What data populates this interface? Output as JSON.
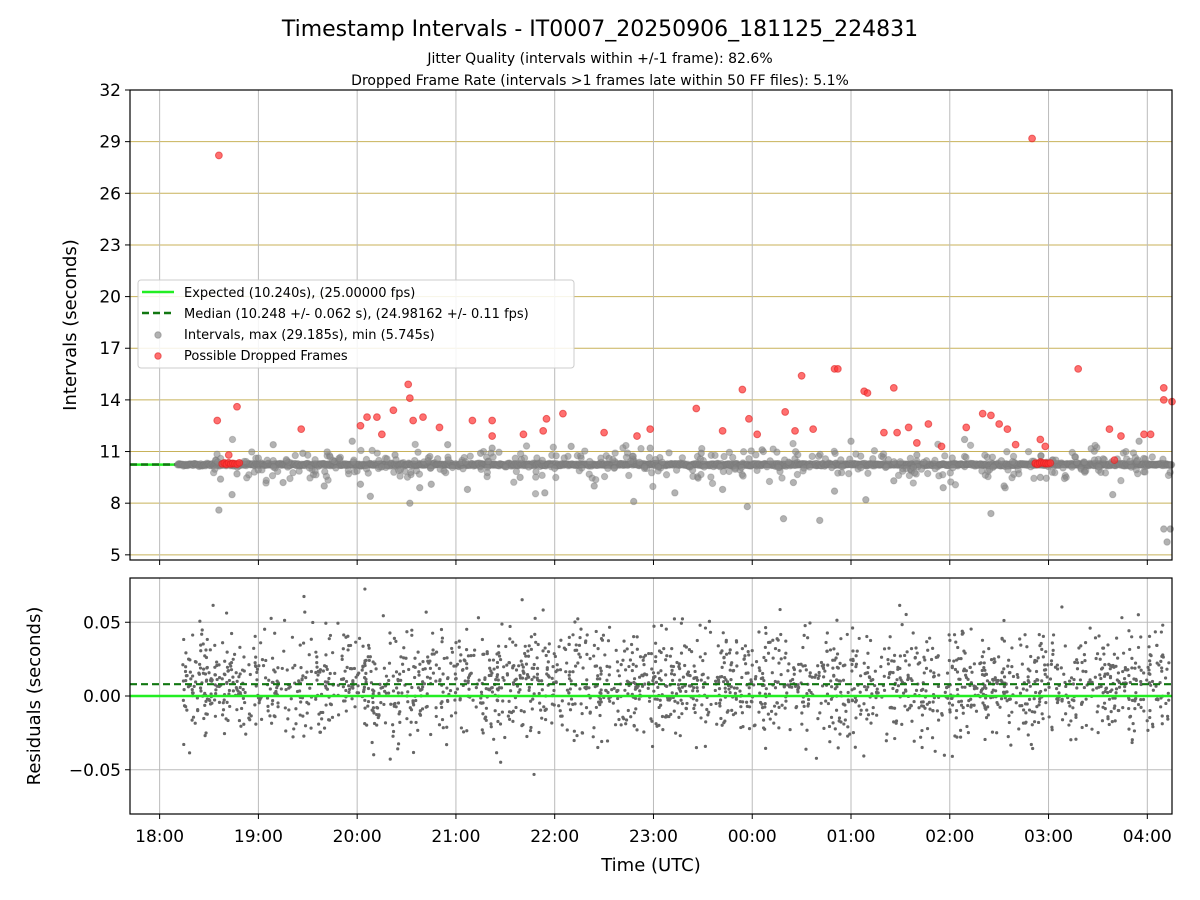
{
  "title": "Timestamp Intervals - IT0007_20250906_181125_224831",
  "subtitle_lines": [
    "Jitter Quality (intervals within +/-1 frame): 82.6%",
    "Dropped Frame Rate (intervals >1 frames late within 50 FF files): 5.1%"
  ],
  "colors": {
    "expected": "#22ee22",
    "median": "#117711",
    "intervals": "#888888",
    "dropped": "#ff3333",
    "gold_grid": "#c8b25a",
    "grey_grid": "#bbbbbb",
    "residual_points": "#666666"
  },
  "chart_data": [
    {
      "type": "scatter",
      "panel": "intervals",
      "title": "Timestamp Intervals - IT0007_20250906_181125_224831",
      "xlabel": "",
      "ylabel": "Intervals (seconds)",
      "x_range": [
        "17:42",
        "04:15"
      ],
      "x_tick_labels": [
        "18:00",
        "19:00",
        "20:00",
        "21:00",
        "22:00",
        "23:00",
        "00:00",
        "01:00",
        "02:00",
        "03:00",
        "04:00"
      ],
      "ylim": [
        4.7,
        32
      ],
      "y_ticks": [
        5,
        8,
        11,
        14,
        17,
        20,
        23,
        26,
        29,
        32
      ],
      "grid": true,
      "legend_position": "center-left",
      "legend": [
        "Expected (10.240s), (25.00000 fps)",
        "Median (10.248 +/- 0.062 s), (24.98162 +/- 0.11 fps)",
        "Intervals, max (29.185s), min (5.745s)",
        "Possible Dropped Frames"
      ],
      "expected_interval": 10.24,
      "median_interval": 10.248,
      "interval_band": {
        "x_start": "18:11",
        "x_end": "04:15",
        "y": 10.24
      },
      "interval_outliers": [
        {
          "x": "18:36",
          "y": 7.6
        },
        {
          "x": "18:37",
          "y": 9.4
        },
        {
          "x": "18:44",
          "y": 8.5
        },
        {
          "x": "18:47",
          "y": 9.7
        },
        {
          "x": "19:09",
          "y": 11.4
        },
        {
          "x": "19:15",
          "y": 9.2
        },
        {
          "x": "19:27",
          "y": 10.9
        },
        {
          "x": "19:40",
          "y": 9.0
        },
        {
          "x": "19:49",
          "y": 10.6
        },
        {
          "x": "19:57",
          "y": 11.6
        },
        {
          "x": "20:02",
          "y": 9.1
        },
        {
          "x": "20:08",
          "y": 8.4
        },
        {
          "x": "20:23",
          "y": 10.8
        },
        {
          "x": "20:32",
          "y": 8.0
        },
        {
          "x": "20:38",
          "y": 8.9
        },
        {
          "x": "20:45",
          "y": 9.1
        },
        {
          "x": "20:55",
          "y": 11.4
        },
        {
          "x": "21:07",
          "y": 8.8
        },
        {
          "x": "21:15",
          "y": 10.9
        },
        {
          "x": "21:22",
          "y": 11.2
        },
        {
          "x": "21:39",
          "y": 9.5
        },
        {
          "x": "21:54",
          "y": 8.6
        },
        {
          "x": "22:10",
          "y": 11.3
        },
        {
          "x": "22:24",
          "y": 9.0
        },
        {
          "x": "22:33",
          "y": 10.6
        },
        {
          "x": "22:48",
          "y": 8.1
        },
        {
          "x": "22:58",
          "y": 11.2
        },
        {
          "x": "23:13",
          "y": 8.6
        },
        {
          "x": "23:29",
          "y": 10.9
        },
        {
          "x": "23:42",
          "y": 8.8
        },
        {
          "x": "23:57",
          "y": 7.8
        },
        {
          "x": "00:06",
          "y": 11.1
        },
        {
          "x": "00:19",
          "y": 7.1
        },
        {
          "x": "00:25",
          "y": 9.2
        },
        {
          "x": "00:41",
          "y": 7.0
        },
        {
          "x": "00:50",
          "y": 8.7
        },
        {
          "x": "01:00",
          "y": 11.6
        },
        {
          "x": "01:09",
          "y": 8.2
        },
        {
          "x": "01:26",
          "y": 9.3
        },
        {
          "x": "01:40",
          "y": 10.8
        },
        {
          "x": "01:56",
          "y": 8.9
        },
        {
          "x": "02:09",
          "y": 11.7
        },
        {
          "x": "02:25",
          "y": 7.4
        },
        {
          "x": "02:33",
          "y": 9.0
        },
        {
          "x": "02:55",
          "y": 9.5
        },
        {
          "x": "03:16",
          "y": 10.7
        },
        {
          "x": "03:39",
          "y": 8.5
        },
        {
          "x": "03:55",
          "y": 11.6
        },
        {
          "x": "04:10",
          "y": 6.5
        },
        {
          "x": "04:12",
          "y": 5.745
        },
        {
          "x": "04:14",
          "y": 6.5
        }
      ],
      "dropped_frames": [
        {
          "x": "18:36",
          "y": 28.2
        },
        {
          "x": "18:35",
          "y": 12.8
        },
        {
          "x": "18:47",
          "y": 13.6
        },
        {
          "x": "18:40",
          "y": 10.3
        },
        {
          "x": "18:42",
          "y": 10.8
        },
        {
          "x": "18:44",
          "y": 10.3
        },
        {
          "x": "19:26",
          "y": 12.3
        },
        {
          "x": "20:02",
          "y": 12.5
        },
        {
          "x": "20:06",
          "y": 13.0
        },
        {
          "x": "20:12",
          "y": 13.0
        },
        {
          "x": "20:15",
          "y": 12.0
        },
        {
          "x": "20:22",
          "y": 13.4
        },
        {
          "x": "20:31",
          "y": 14.9
        },
        {
          "x": "20:32",
          "y": 14.1
        },
        {
          "x": "20:34",
          "y": 12.8
        },
        {
          "x": "20:40",
          "y": 13.0
        },
        {
          "x": "20:50",
          "y": 12.4
        },
        {
          "x": "21:10",
          "y": 12.8
        },
        {
          "x": "21:22",
          "y": 12.8
        },
        {
          "x": "21:22",
          "y": 11.9
        },
        {
          "x": "21:41",
          "y": 12.0
        },
        {
          "x": "21:53",
          "y": 12.2
        },
        {
          "x": "21:55",
          "y": 12.9
        },
        {
          "x": "22:05",
          "y": 13.2
        },
        {
          "x": "22:30",
          "y": 12.1
        },
        {
          "x": "22:50",
          "y": 11.9
        },
        {
          "x": "22:58",
          "y": 12.3
        },
        {
          "x": "23:26",
          "y": 13.5
        },
        {
          "x": "23:42",
          "y": 12.2
        },
        {
          "x": "23:54",
          "y": 14.6
        },
        {
          "x": "23:58",
          "y": 12.9
        },
        {
          "x": "00:03",
          "y": 12.0
        },
        {
          "x": "00:20",
          "y": 13.3
        },
        {
          "x": "00:26",
          "y": 12.2
        },
        {
          "x": "00:30",
          "y": 15.4
        },
        {
          "x": "00:37",
          "y": 12.3
        },
        {
          "x": "00:50",
          "y": 15.8
        },
        {
          "x": "00:52",
          "y": 15.8
        },
        {
          "x": "01:08",
          "y": 14.5
        },
        {
          "x": "01:10",
          "y": 14.4
        },
        {
          "x": "01:20",
          "y": 12.1
        },
        {
          "x": "01:26",
          "y": 14.7
        },
        {
          "x": "01:28",
          "y": 12.1
        },
        {
          "x": "01:35",
          "y": 12.4
        },
        {
          "x": "01:40",
          "y": 11.5
        },
        {
          "x": "01:47",
          "y": 12.6
        },
        {
          "x": "01:55",
          "y": 11.3
        },
        {
          "x": "02:10",
          "y": 12.4
        },
        {
          "x": "02:20",
          "y": 13.2
        },
        {
          "x": "02:25",
          "y": 13.1
        },
        {
          "x": "02:30",
          "y": 12.6
        },
        {
          "x": "02:35",
          "y": 12.3
        },
        {
          "x": "02:40",
          "y": 11.4
        },
        {
          "x": "02:50",
          "y": 29.185
        },
        {
          "x": "02:55",
          "y": 11.7
        },
        {
          "x": "02:58",
          "y": 11.3
        },
        {
          "x": "02:52",
          "y": 10.3
        },
        {
          "x": "02:55",
          "y": 10.4
        },
        {
          "x": "02:58",
          "y": 10.3
        },
        {
          "x": "03:18",
          "y": 15.8
        },
        {
          "x": "03:37",
          "y": 12.3
        },
        {
          "x": "03:40",
          "y": 10.5
        },
        {
          "x": "03:44",
          "y": 11.9
        },
        {
          "x": "03:58",
          "y": 12.0
        },
        {
          "x": "04:02",
          "y": 12.0
        },
        {
          "x": "04:10",
          "y": 14.7
        },
        {
          "x": "04:10",
          "y": 14.0
        },
        {
          "x": "04:15",
          "y": 13.9
        }
      ]
    },
    {
      "type": "scatter",
      "panel": "residuals",
      "xlabel": "Time (UTC)",
      "ylabel": "Residuals (seconds)",
      "x_range": [
        "17:42",
        "04:15"
      ],
      "x_tick_labels": [
        "18:00",
        "19:00",
        "20:00",
        "21:00",
        "22:00",
        "23:00",
        "00:00",
        "01:00",
        "02:00",
        "03:00",
        "04:00"
      ],
      "ylim": [
        -0.08,
        0.08
      ],
      "y_tick_labels": [
        "0.05",
        "0.00",
        "−0.05"
      ],
      "y_tick_values": [
        0.05,
        0.0,
        -0.05
      ],
      "grid": true,
      "expected_residual": 0.0,
      "median_residual": 0.008,
      "point_cloud": {
        "x_start": "18:14",
        "x_end": "04:15",
        "center": 0.008,
        "spread": 0.03,
        "count": 2200
      }
    }
  ]
}
